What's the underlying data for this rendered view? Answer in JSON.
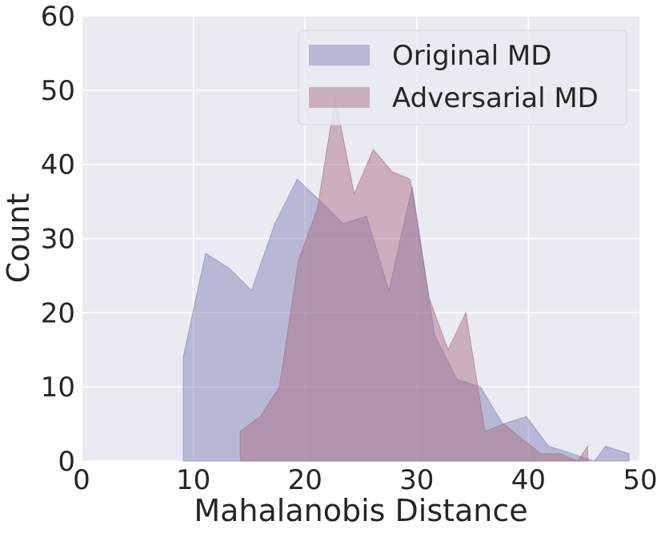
{
  "chart_data": {
    "type": "area",
    "xlabel": "Mahalanobis Distance",
    "ylabel": "Count",
    "xlim": [
      0,
      50
    ],
    "ylim": [
      0,
      60
    ],
    "xticks": [
      0,
      10,
      20,
      30,
      40,
      50
    ],
    "yticks": [
      0,
      10,
      20,
      30,
      40,
      50,
      60
    ],
    "grid": true,
    "legend_position": "top-right",
    "series": [
      {
        "name": "Original MD",
        "color": "#7b7db3",
        "x": [
          9.1,
          9.1,
          11.1,
          13.2,
          15.2,
          17.3,
          19.3,
          21.4,
          23.4,
          25.5,
          27.5,
          29.6,
          31.6,
          33.6,
          35.7,
          37.7,
          39.8,
          41.8,
          43.9,
          45.9,
          46.9,
          49.0,
          49.0
        ],
        "y": [
          0,
          14,
          28,
          26,
          23,
          32,
          38,
          35,
          32,
          33,
          23,
          37,
          17,
          11,
          10,
          5,
          6,
          2,
          1,
          0,
          2,
          1,
          0
        ]
      },
      {
        "name": "Adversarial MD",
        "color": "#a8687f",
        "x": [
          14.2,
          14.2,
          16.0,
          17.7,
          19.4,
          21.1,
          22.7,
          24.4,
          26.1,
          27.8,
          29.4,
          31.1,
          32.8,
          34.4,
          36.1,
          37.8,
          39.4,
          41.1,
          42.8,
          44.4,
          45.3,
          45.3
        ],
        "y": [
          0,
          4,
          6,
          10,
          27,
          34,
          49,
          36,
          42,
          39,
          38,
          22,
          15,
          20,
          4,
          5,
          3,
          1,
          1,
          0,
          2,
          0
        ]
      }
    ]
  }
}
